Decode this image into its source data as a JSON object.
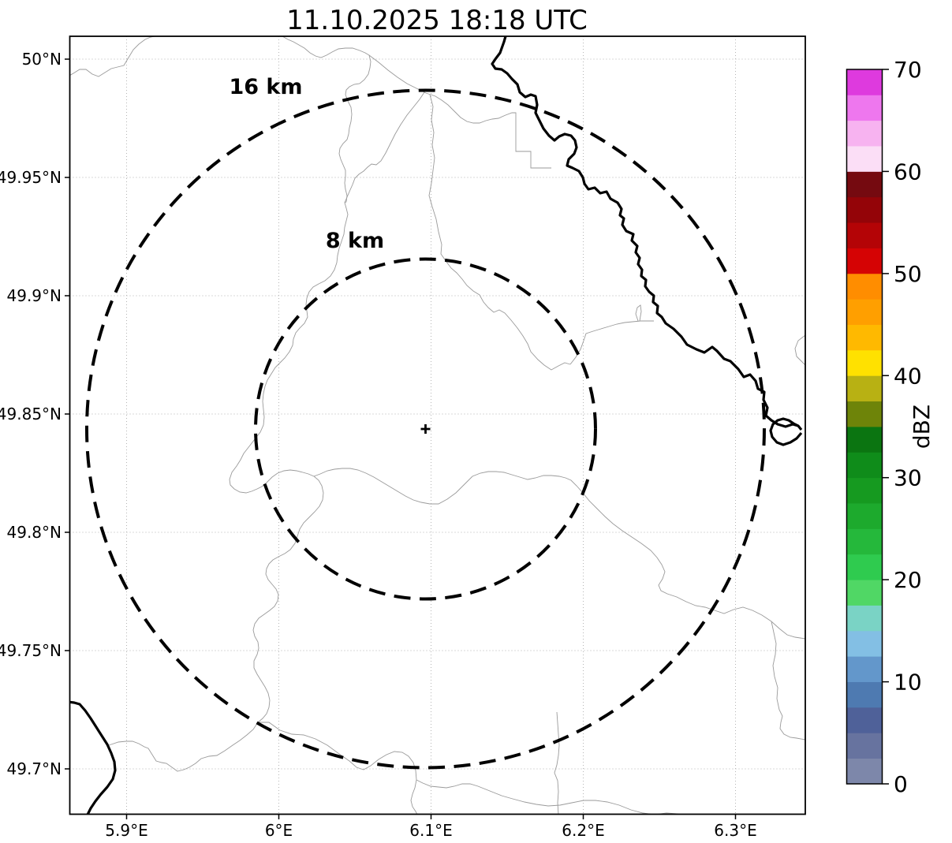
{
  "title": "11.10.2025 18:18 UTC",
  "axes": {
    "x_ticks": [
      "5.9°E",
      "6°E",
      "6.1°E",
      "6.2°E",
      "6.3°E"
    ],
    "y_ticks": [
      "50°N",
      "49.95°N",
      "49.9°N",
      "49.85°N",
      "49.8°N",
      "49.75°N",
      "49.7°N"
    ]
  },
  "rings": {
    "outer_label": "16 km",
    "inner_label": "8 km",
    "center_marker": "+"
  },
  "colorbar": {
    "label": "dBZ",
    "ticks": [
      "0",
      "10",
      "20",
      "30",
      "40",
      "50",
      "60",
      "70"
    ],
    "colors": [
      "#7d87aa",
      "#67739f",
      "#4f6199",
      "#4e7ab1",
      "#6397cb",
      "#83bfe4",
      "#7ad3c5",
      "#50d765",
      "#2fcb4f",
      "#25b83b",
      "#1daa2d",
      "#169a20",
      "#0f8c1a",
      "#0b7511",
      "#6e8409",
      "#b8b113",
      "#ffe100",
      "#ffb900",
      "#ff9f00",
      "#ff8d00",
      "#d50304",
      "#b40406",
      "#940408",
      "#750a10",
      "#fbdef6",
      "#f7b3f0",
      "#ee77ee",
      "#de3ade"
    ]
  },
  "map": {
    "borders": {
      "b1": "86,97 93,93 101,88 109,88 117,94 125,97 133,92 141,87 149,85 157,83 163,73 169,63 176,56 184,50 191,47 196,46",
      "b2": "358,46 365,50 372,53 379,57 386,61 393,67 400,71 407,73 414,70 421,66 429,62 438,61 447,61 456,64 463,67 468,70 470,78 469,86 467,94 462,101 456,106 449,107 443,110 439,114 438,120 441,128 445,136 446,145 445,154 443,162 442,170 440,177 435,182 431,188 430,195 432,202 435,209 438,216 438,224 437,232 438,240 440,248 439,256 437,257 439,264 441,272 439,280 437,288 436,297 433,306 430,315 428,324 427,333 424,342 419,350 412,356 404,360 397,364 392,370 389,378 388,386 389,394 390,402 386,410 380,416 375,422 372,430 371,438 367,446 361,454 355,460 349,466 344,474 339,482 336,490 334,499 333,509 334,519 335,529 334,539 330,548 323,557 316,566 309,575 305,583 300,591 294,599 291,608 292,615 297,620 304,624 312,625 319,623 326,620 332,617 338,612 345,605 352,600 360,597 368,596 376,597 384,599 391,601 398,604",
      "b2d": "540,114 532,126 524,136 516,146 508,158 501,170 495,182 489,194 483,204 477,209 471,208 466,212 461,217 455,221 450,226 447,234 443,243 440,250 437,257",
      "b3": "545,120 549,135 547,152 550,168 548,184 551,200 549,216 547,232 544,248 548,262 553,278 556,294 560,310 559,322 566,332 572,340 579,346 586,354 592,362 600,369 608,374 613,383 619,390 626,396 633,393 640,397 648,406 656,416 663,426 669,436 673,446 682,456 690,463 699,469 708,464 716,460 723,462",
      "b3r": "723,462 730,453 736,443 740,432 743,423 752,420 762,417 772,414 782,411 792,409 802,408 812,407 820,407 829,407",
      "b3s": "809,407 806,398 808,390 812,387 813,395 812,401 811,407",
      "b4": "468,70 480,79 492,89 504,98 516,106 528,112 540,118 552,122 560,127 568,133 576,141 584,149 592,154 600,156 608,156 616,153 624,151 632,150 641,146 649,143 654,143 654,160 654,176 654,192 664,192 673,192 673,202 673,213 682,213 691,213 699,213",
      "b5": "398,604 406,601 415,597 424,595 434,594 444,594 454,596 464,600 474,605 484,611 494,617 504,623 514,629 524,634 534,637 545,639 556,639 567,633 578,625 589,614 599,604 609,600 619,598 629,598 639,599 649,602 659,605 669,608 679,606 689,603 699,603 709,604 717,606 724,609 731,616 739,625 747,635 757,645 767,655 777,664 789,673 801,681 813,689 825,698 833,707 839,716 843,725 840,734 835,742 838,749 846,753",
      "b6": "398,604 404,609 408,616 410,625 409,634 405,642 399,649 392,656 385,663 380,671 377,680 374,689 368,697 361,702 353,706 346,710 341,715 338,721 337,728 340,735 345,741 350,747 353,754 352,762 348,769 342,774 335,779 328,784 323,791 321,799 323,807 327,814 328,822 326,830 322,838 322,847 326,855 331,863 336,871 340,879 342,888 341,897 338,905 333,911 327,916",
      "b7": "138,945 150,941 160,940 168,940 176,943 183,947 188,949 193,957 198,965 205,967 211,968 218,973 225,978 233,976 240,973 248,968 255,962 265,959 275,958 285,952 295,945 304,939 313,932 321,925 327,916",
      "b8": "327,916 341,916 355,926 370,931 385,932 400,937 415,945 430,956 443,965 452,973 461,976 470,971 480,963 490,957 500,953 510,954 518,959 524,967 527,977 528,989 526,999 523,1007 521,1015 523,1023 527,1029 529,1033",
      "b9": "528,989 536,993 546,997 556,998 566,999 576,997 586,994 596,994 606,997 616,1001 626,1005 636,1009 650,1013 665,1017 680,1020 695,1022 710,1021 725,1018 740,1015 755,1015 770,1017 785,1021 800,1027 815,1031 830,1033 845,1031 858,1032 864,1033",
      "b10": "708,1033 707,1018 708,1004 707,990 703,980 706,970 708,958 709,945 708,931 707,917 706,903",
      "b11": "846,753 858,757 870,763 882,768 894,770 906,774 918,778 930,773 942,770 954,774 966,780 978,788 988,797 998,805 1008,808 1021,810",
      "b12": "978,788 981,802 984,816 983,830 980,844 982,858 986,872 985,886 988,900 992,908 990,916 989,924 994,931 1002,935 1010,936 1021,938",
      "b13": "1021,425 1012,432 1008,442 1010,452 1016,458 1021,463"
    },
    "rivers": {
      "r1": "641,46 639,53 634,67 628,75 624,81 628,87 636,88 643,93 649,100 656,107 659,117 666,123 673,120 679,122 681,133 679,143 684,153 689,163 696,172 703,178 709,173 716,170 724,172 729,178 731,187 728,195 721,202 719,210 726,213 734,217 739,225 741,233 746,240 754,238 761,245 769,243 774,252 783,257 788,265 786,273 791,277 789,285 794,293 803,297 801,305 808,312 806,320 811,327 809,335 814,342 813,350 819,355 818,363 823,370 829,375 828,383 834,388 833,397 839,402 844,410 854,417 864,427 871,437 883,443 893,447 903,440 909,445 918,455 926,458 936,468 943,478 951,475 958,483 961,493 969,497 968,507 973,517 971,527 978,533 986,538 996,541 1005,538 1012,540 1016,545",
      "r2": "1016,549 1010,556 1002,561 993,564 985,561 979,554 977,546 980,538 986,533 993,531 1000,533 1006,537 1012,540",
      "r3": "86,890 94,891 101,893 108,901 115,911 122,922 129,933 136,944 141,955 145,966 146,977 143,988 136,998 128,1007 121,1016 115,1025 111,1033"
    }
  }
}
